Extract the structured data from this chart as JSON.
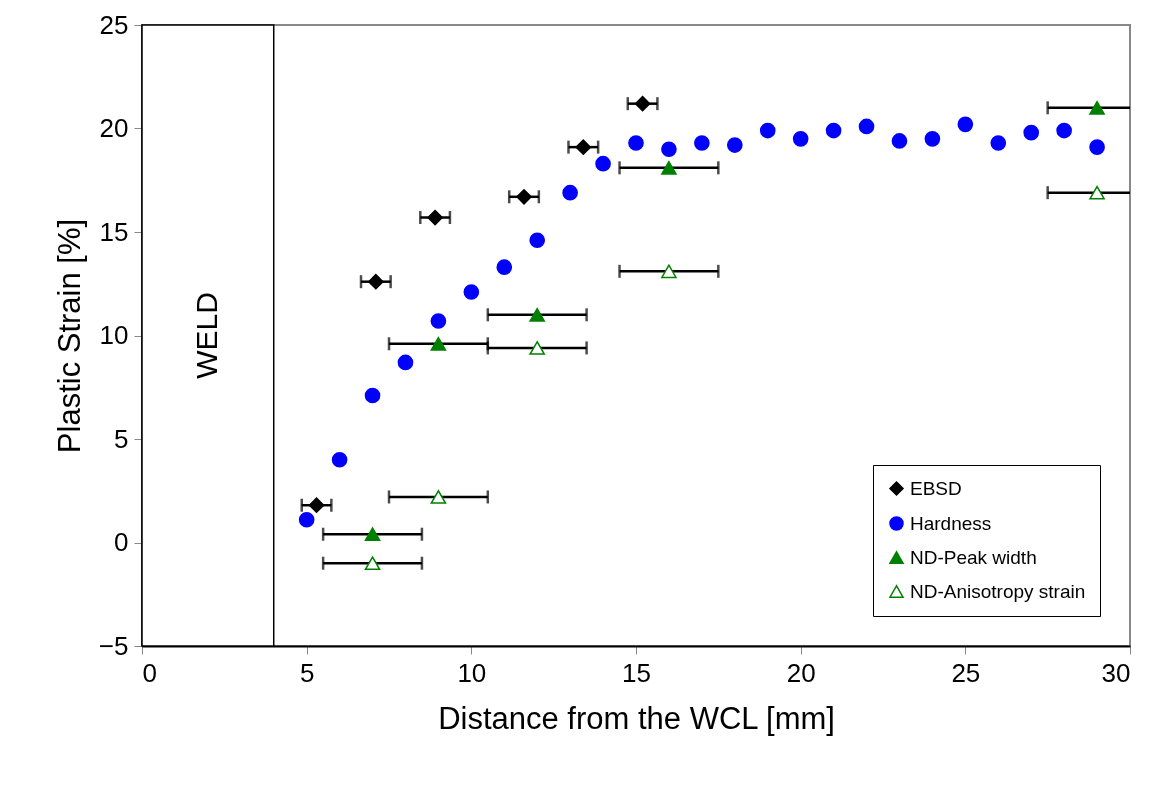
{
  "chart_data": {
    "type": "scatter",
    "xlabel": "Distance from the WCL [mm]",
    "ylabel": "Plastic Strain [%]",
    "xlim": [
      0,
      30
    ],
    "xticks": [
      0,
      5,
      10,
      15,
      20,
      25,
      30
    ],
    "ylim": [
      -5,
      25
    ],
    "yticks": [
      -5,
      0,
      5,
      10,
      15,
      20,
      25
    ],
    "grid": false,
    "legend": "bottom right",
    "bands": [
      {
        "axis": "x",
        "from": 0,
        "to": 4,
        "label": "WELD",
        "color": "#ffffff"
      }
    ],
    "series": [
      {
        "name": "EBSD",
        "color": "#000000",
        "marker": "diamond",
        "x": [
          5.3,
          7.1,
          8.9,
          11.6,
          13.4,
          15.2
        ],
        "values": [
          1.8,
          12.6,
          15.7,
          16.7,
          19.1,
          21.2
        ],
        "xerrors": [
          0.45,
          0.45,
          0.45,
          0.45,
          0.45,
          0.45
        ]
      },
      {
        "name": "Hardness",
        "color": "#0000ff",
        "marker": "circle",
        "x": [
          5,
          6,
          7,
          8,
          9,
          10,
          11,
          12,
          13,
          14,
          15,
          16,
          17,
          18,
          19,
          20,
          21,
          22,
          23,
          24,
          25,
          26,
          27,
          28,
          29
        ],
        "values": [
          1.1,
          4.0,
          7.1,
          8.7,
          10.7,
          12.1,
          13.3,
          14.6,
          16.9,
          18.3,
          19.3,
          19.0,
          19.3,
          19.2,
          19.9,
          19.5,
          19.9,
          20.1,
          19.4,
          19.5,
          20.2,
          19.3,
          19.8,
          19.9,
          19.1
        ]
      },
      {
        "name": "ND-Peak width",
        "color": "#008000",
        "marker": "triangle",
        "x": [
          7,
          9,
          12,
          16,
          29
        ],
        "values": [
          0.4,
          9.6,
          11.0,
          18.1,
          21.0
        ],
        "xerrors": [
          1.5,
          1.5,
          1.5,
          1.5,
          [
            27.5,
            30
          ]
        ]
      },
      {
        "name": "ND-Anisotropy strain",
        "color": "#008000",
        "marker": "triangle",
        "x": [
          7,
          9,
          12,
          16,
          29
        ],
        "values": [
          -1.0,
          2.2,
          9.4,
          13.1,
          16.9
        ],
        "xerrors": [
          1.5,
          1.5,
          1.5,
          1.5,
          [
            27.5,
            30
          ]
        ]
      }
    ]
  }
}
